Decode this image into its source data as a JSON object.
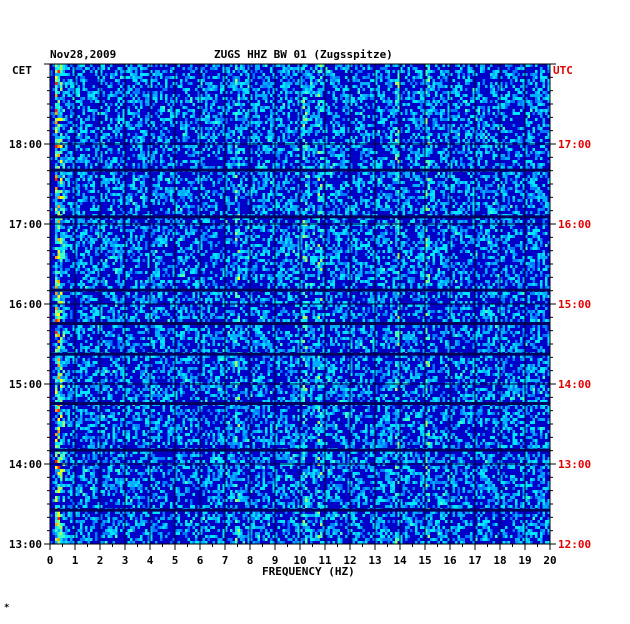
{
  "header": {
    "date": "Nov28,2009",
    "station": "ZUGS HHZ BW 01 (Zugsspitze)"
  },
  "left_label": "CET",
  "right_label": "UTC",
  "footer_mark": "*",
  "colors": {
    "background": "#0000c8",
    "utc_text": "#e00000",
    "axis": "#000000"
  },
  "chart_data": {
    "type": "heatmap",
    "title": "ZUGS HHZ BW 01 (Zugsspitze)",
    "xlabel": "FREQUENCY (HZ)",
    "xlim": [
      0,
      20
    ],
    "x_ticks": [
      "0",
      "1",
      "2",
      "3",
      "4",
      "5",
      "6",
      "7",
      "8",
      "9",
      "10",
      "11",
      "12",
      "13",
      "14",
      "15",
      "16",
      "17",
      "18",
      "19",
      "20"
    ],
    "y_ticks_cet": [
      "13:00",
      "14:00",
      "15:00",
      "16:00",
      "17:00",
      "18:00"
    ],
    "y_ticks_utc": [
      "12:00",
      "13:00",
      "14:00",
      "15:00",
      "16:00",
      "17:00"
    ],
    "time_range_cet": [
      "13:00",
      "19:00"
    ],
    "colormap": [
      "blue",
      "cyan",
      "yellow",
      "red"
    ],
    "grid": true,
    "persistent_bands_hz": [
      0.3,
      7.5,
      10.2,
      10.8,
      13.9,
      15.1
    ],
    "gaps_cet": [
      "13:25",
      "14:10",
      "14:45",
      "15:22",
      "15:45",
      "16:10",
      "17:05",
      "17:40"
    ]
  }
}
